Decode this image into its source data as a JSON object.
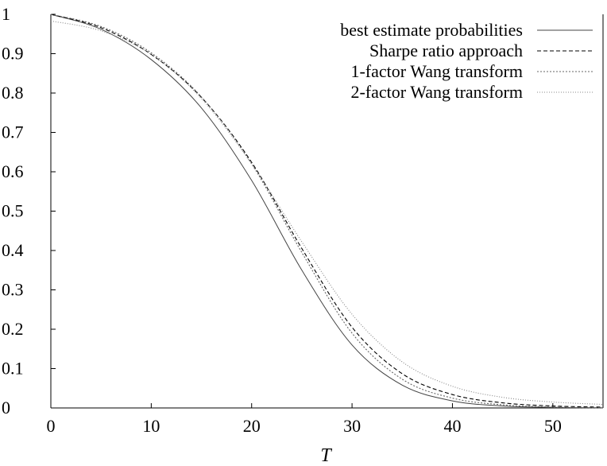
{
  "chart_data": {
    "type": "line",
    "xlabel": "T",
    "ylabel": "",
    "xlim": [
      0,
      55
    ],
    "ylim": [
      0,
      1
    ],
    "x_ticks": [
      "0",
      "10",
      "20",
      "30",
      "40",
      "50"
    ],
    "y_ticks": [
      "0",
      "0.1",
      "0.2",
      "0.3",
      "0.4",
      "0.5",
      "0.6",
      "0.7",
      "0.8",
      "0.9",
      "1"
    ],
    "grid": false,
    "legend_position": "top-right",
    "series": [
      {
        "name": "best estimate probabilities",
        "style": "solid",
        "color": "#444444",
        "x": [
          0,
          5,
          10,
          15,
          20,
          25,
          30,
          35,
          40,
          45,
          50,
          55
        ],
        "y": [
          1.0,
          0.962,
          0.885,
          0.762,
          0.578,
          0.35,
          0.16,
          0.058,
          0.018,
          0.005,
          0.0015,
          0.0003
        ]
      },
      {
        "name": "Sharpe ratio approach",
        "style": "dashed",
        "color": "#000000",
        "x": [
          0,
          5,
          10,
          15,
          20,
          25,
          30,
          35,
          40,
          45,
          50,
          55
        ],
        "y": [
          1.0,
          0.966,
          0.898,
          0.789,
          0.624,
          0.405,
          0.205,
          0.087,
          0.034,
          0.013,
          0.005,
          0.002
        ]
      },
      {
        "name": "1-factor Wang transform",
        "style": "dotted",
        "color": "#666666",
        "x": [
          0,
          5,
          10,
          15,
          20,
          25,
          30,
          35,
          40,
          45,
          50,
          55
        ],
        "y": [
          1.0,
          0.969,
          0.902,
          0.79,
          0.62,
          0.395,
          0.19,
          0.073,
          0.025,
          0.008,
          0.002,
          0.0005
        ]
      },
      {
        "name": "2-factor Wang transform",
        "style": "dotted-fine",
        "color": "#888888",
        "x": [
          0,
          5,
          10,
          15,
          20,
          25,
          30,
          35,
          40,
          45,
          50,
          55
        ],
        "y": [
          0.983,
          0.958,
          0.898,
          0.786,
          0.62,
          0.422,
          0.238,
          0.117,
          0.055,
          0.027,
          0.015,
          0.009
        ]
      }
    ]
  }
}
